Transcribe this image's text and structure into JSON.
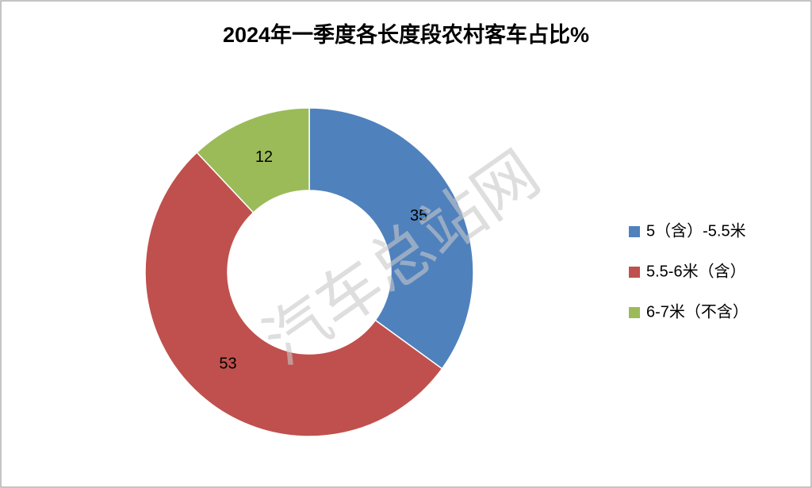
{
  "chart_data": {
    "type": "donut",
    "title": "2024年一季度各长度段农村客车占比%",
    "categories": [
      "5（含）-5.5米",
      "5.5-6米（含）",
      "6-7米（不含）"
    ],
    "values": [
      35,
      53,
      12
    ],
    "colors": [
      "#4f81bd",
      "#c0504d",
      "#9bbb59"
    ],
    "legend": "right",
    "watermark": "汽车总站网"
  }
}
